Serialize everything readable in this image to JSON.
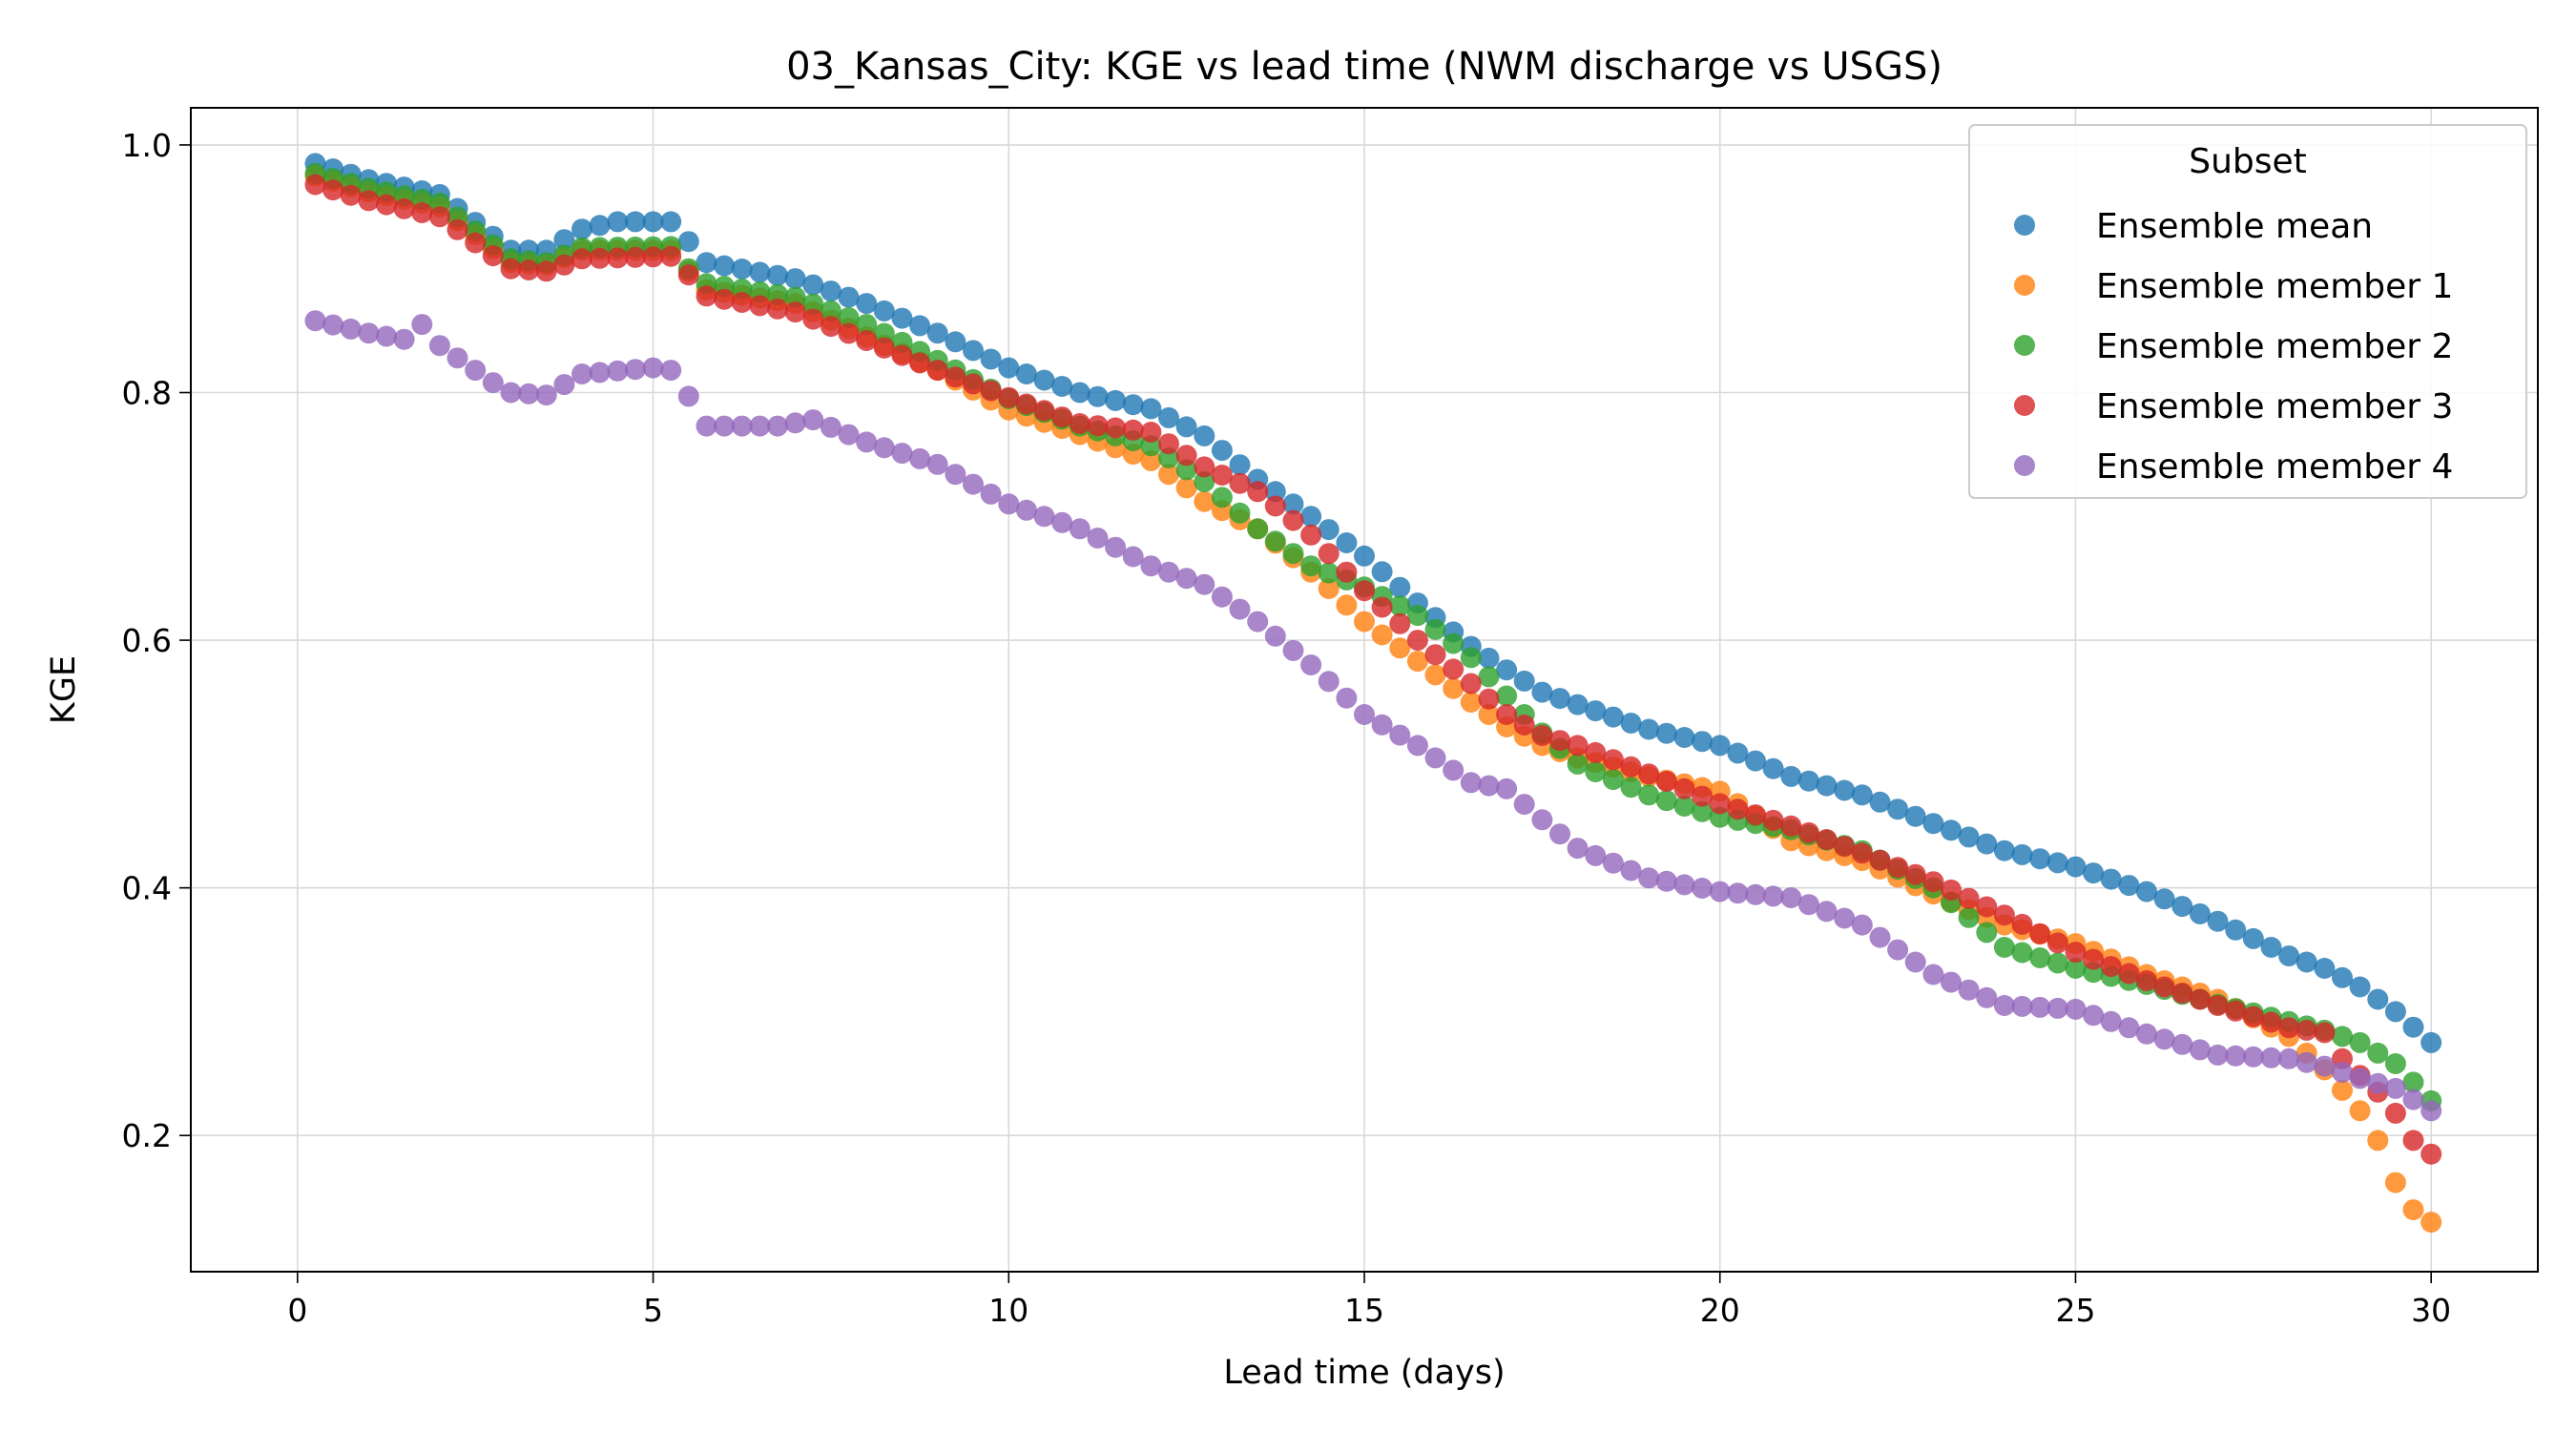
{
  "chart_data": {
    "type": "scatter",
    "title": "03_Kansas_City: KGE vs lead time (NWM discharge vs USGS)",
    "xlabel": "Lead time (days)",
    "ylabel": "KGE",
    "xlim": [
      -1.5,
      31.5
    ],
    "ylim": [
      0.09,
      1.03
    ],
    "xticks": [
      0,
      5,
      10,
      15,
      20,
      25,
      30
    ],
    "xtick_labels": [
      "0",
      "5",
      "10",
      "15",
      "20",
      "25",
      "30"
    ],
    "yticks": [
      0.2,
      0.4,
      0.6,
      0.8,
      1.0
    ],
    "ytick_labels": [
      "0.2",
      "0.4",
      "0.6",
      "0.8",
      "1.0"
    ],
    "grid": true,
    "legend": {
      "title": "Subset",
      "placement": "top-right"
    },
    "x_spacing_days": 0.25,
    "x_start": 0.25,
    "x_end": 30.0,
    "series": [
      {
        "name": "Ensemble mean",
        "color": "#1f77b4",
        "anchors": [
          [
            0.25,
            0.985
          ],
          [
            1,
            0.972
          ],
          [
            2,
            0.96
          ],
          [
            3,
            0.915
          ],
          [
            3.5,
            0.915
          ],
          [
            4,
            0.932
          ],
          [
            4.5,
            0.938
          ],
          [
            5.25,
            0.938
          ],
          [
            5.5,
            0.922
          ],
          [
            5.75,
            0.905
          ],
          [
            7,
            0.892
          ],
          [
            8,
            0.872
          ],
          [
            9,
            0.848
          ],
          [
            10,
            0.82
          ],
          [
            11,
            0.8
          ],
          [
            12,
            0.787
          ],
          [
            12.75,
            0.765
          ],
          [
            13.5,
            0.73
          ],
          [
            14.25,
            0.7
          ],
          [
            15,
            0.668
          ],
          [
            15.75,
            0.63
          ],
          [
            16.5,
            0.595
          ],
          [
            17,
            0.576
          ],
          [
            17.5,
            0.558
          ],
          [
            18,
            0.548
          ],
          [
            19,
            0.528
          ],
          [
            20,
            0.515
          ],
          [
            21,
            0.49
          ],
          [
            22,
            0.475
          ],
          [
            23,
            0.452
          ],
          [
            24,
            0.43
          ],
          [
            25,
            0.417
          ],
          [
            26,
            0.397
          ],
          [
            27,
            0.373
          ],
          [
            28,
            0.345
          ],
          [
            28.5,
            0.335
          ],
          [
            29,
            0.32
          ],
          [
            29.5,
            0.3
          ],
          [
            30,
            0.275
          ]
        ]
      },
      {
        "name": "Ensemble member 1",
        "color": "#ff7f0e",
        "anchors": [
          [
            0.25,
            0.975
          ],
          [
            1,
            0.962
          ],
          [
            2,
            0.95
          ],
          [
            3,
            0.905
          ],
          [
            3.5,
            0.903
          ],
          [
            4,
            0.915
          ],
          [
            5.25,
            0.915
          ],
          [
            5.5,
            0.898
          ],
          [
            5.75,
            0.883
          ],
          [
            7,
            0.872
          ],
          [
            8,
            0.845
          ],
          [
            9,
            0.818
          ],
          [
            10,
            0.786
          ],
          [
            11,
            0.766
          ],
          [
            12,
            0.745
          ],
          [
            12.75,
            0.712
          ],
          [
            13.5,
            0.69
          ],
          [
            14.25,
            0.655
          ],
          [
            15,
            0.615
          ],
          [
            15.75,
            0.583
          ],
          [
            16.5,
            0.55
          ],
          [
            17,
            0.53
          ],
          [
            17.5,
            0.515
          ],
          [
            18,
            0.505
          ],
          [
            19,
            0.49
          ],
          [
            20,
            0.478
          ],
          [
            21,
            0.438
          ],
          [
            22,
            0.422
          ],
          [
            23,
            0.395
          ],
          [
            24,
            0.37
          ],
          [
            25,
            0.355
          ],
          [
            26,
            0.33
          ],
          [
            27,
            0.31
          ],
          [
            28,
            0.28
          ],
          [
            28.5,
            0.253
          ],
          [
            29,
            0.22
          ],
          [
            29.25,
            0.196
          ],
          [
            29.5,
            0.162
          ],
          [
            29.75,
            0.14
          ],
          [
            30,
            0.13
          ]
        ]
      },
      {
        "name": "Ensemble member 2",
        "color": "#2ca02c",
        "anchors": [
          [
            0.25,
            0.977
          ],
          [
            1,
            0.965
          ],
          [
            2,
            0.953
          ],
          [
            3,
            0.908
          ],
          [
            3.5,
            0.905
          ],
          [
            4,
            0.917
          ],
          [
            5.25,
            0.918
          ],
          [
            5.5,
            0.9
          ],
          [
            5.75,
            0.888
          ],
          [
            7,
            0.877
          ],
          [
            8,
            0.855
          ],
          [
            9,
            0.826
          ],
          [
            10,
            0.795
          ],
          [
            11,
            0.773
          ],
          [
            12,
            0.757
          ],
          [
            12.75,
            0.728
          ],
          [
            13.5,
            0.69
          ],
          [
            14.25,
            0.66
          ],
          [
            15,
            0.643
          ],
          [
            15.75,
            0.62
          ],
          [
            16.5,
            0.586
          ],
          [
            17,
            0.555
          ],
          [
            17.5,
            0.525
          ],
          [
            18,
            0.5
          ],
          [
            19,
            0.475
          ],
          [
            20,
            0.457
          ],
          [
            21,
            0.447
          ],
          [
            22,
            0.43
          ],
          [
            23,
            0.4
          ],
          [
            24,
            0.352
          ],
          [
            25,
            0.335
          ],
          [
            26,
            0.322
          ],
          [
            27,
            0.306
          ],
          [
            28,
            0.292
          ],
          [
            28.5,
            0.285
          ],
          [
            29,
            0.275
          ],
          [
            29.5,
            0.258
          ],
          [
            30,
            0.228
          ]
        ]
      },
      {
        "name": "Ensemble member 3",
        "color": "#d62728",
        "anchors": [
          [
            0.25,
            0.968
          ],
          [
            1,
            0.955
          ],
          [
            2,
            0.942
          ],
          [
            3,
            0.9
          ],
          [
            3.5,
            0.898
          ],
          [
            4,
            0.908
          ],
          [
            5.25,
            0.91
          ],
          [
            5.5,
            0.895
          ],
          [
            5.75,
            0.878
          ],
          [
            7,
            0.865
          ],
          [
            8,
            0.842
          ],
          [
            9,
            0.818
          ],
          [
            10,
            0.796
          ],
          [
            11,
            0.775
          ],
          [
            12,
            0.768
          ],
          [
            12.75,
            0.74
          ],
          [
            13.5,
            0.72
          ],
          [
            14.25,
            0.685
          ],
          [
            15,
            0.64
          ],
          [
            15.75,
            0.6
          ],
          [
            16.5,
            0.565
          ],
          [
            17,
            0.54
          ],
          [
            17.5,
            0.523
          ],
          [
            18,
            0.515
          ],
          [
            19,
            0.492
          ],
          [
            20,
            0.468
          ],
          [
            21,
            0.45
          ],
          [
            22,
            0.428
          ],
          [
            23,
            0.405
          ],
          [
            24,
            0.378
          ],
          [
            25,
            0.348
          ],
          [
            26,
            0.325
          ],
          [
            27,
            0.305
          ],
          [
            28,
            0.287
          ],
          [
            28.5,
            0.283
          ],
          [
            28.75,
            0.262
          ],
          [
            29.25,
            0.235
          ],
          [
            29.5,
            0.218
          ],
          [
            29.75,
            0.196
          ],
          [
            30,
            0.185
          ]
        ]
      },
      {
        "name": "Ensemble member 4",
        "color": "#9467bd",
        "anchors": [
          [
            0.25,
            0.858
          ],
          [
            1,
            0.848
          ],
          [
            1.5,
            0.843
          ],
          [
            1.75,
            0.855
          ],
          [
            2,
            0.838
          ],
          [
            2.75,
            0.808
          ],
          [
            3,
            0.8
          ],
          [
            3.5,
            0.798
          ],
          [
            4,
            0.815
          ],
          [
            5,
            0.82
          ],
          [
            5.25,
            0.818
          ],
          [
            5.5,
            0.797
          ],
          [
            5.75,
            0.773
          ],
          [
            6.75,
            0.773
          ],
          [
            7.25,
            0.778
          ],
          [
            8,
            0.76
          ],
          [
            9,
            0.742
          ],
          [
            10,
            0.71
          ],
          [
            11,
            0.69
          ],
          [
            12,
            0.66
          ],
          [
            12.75,
            0.645
          ],
          [
            13.5,
            0.615
          ],
          [
            14.25,
            0.58
          ],
          [
            15,
            0.54
          ],
          [
            15.75,
            0.515
          ],
          [
            16.5,
            0.485
          ],
          [
            17,
            0.48
          ],
          [
            17.5,
            0.455
          ],
          [
            18,
            0.432
          ],
          [
            19,
            0.408
          ],
          [
            20,
            0.397
          ],
          [
            21,
            0.392
          ],
          [
            22,
            0.37
          ],
          [
            23,
            0.33
          ],
          [
            24,
            0.305
          ],
          [
            25,
            0.302
          ],
          [
            26,
            0.282
          ],
          [
            27,
            0.265
          ],
          [
            28,
            0.262
          ],
          [
            28.5,
            0.256
          ],
          [
            29,
            0.246
          ],
          [
            29.5,
            0.238
          ],
          [
            30,
            0.22
          ]
        ]
      }
    ]
  }
}
